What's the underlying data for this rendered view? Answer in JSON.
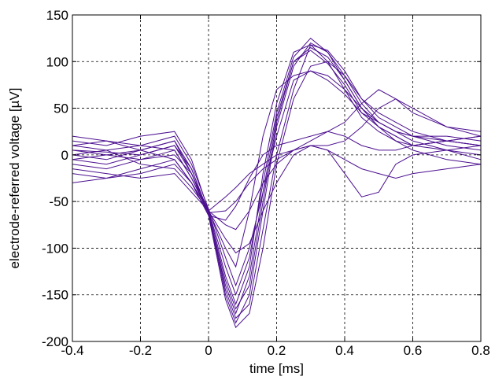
{
  "chart_data": {
    "type": "line",
    "title": "",
    "xlabel": "time [ms]",
    "ylabel": "electrode-referred voltage [µV]",
    "xlim": [
      -0.4,
      0.8
    ],
    "ylim": [
      -200,
      150
    ],
    "xticks": [
      -0.4,
      -0.2,
      0,
      0.2,
      0.4,
      0.6,
      0.8
    ],
    "xtick_labels": [
      "-0.4",
      "-0.2",
      "0",
      "0.2",
      "0.4",
      "0.6",
      "0.8"
    ],
    "yticks": [
      -200,
      -150,
      -100,
      -50,
      0,
      50,
      100,
      150
    ],
    "ytick_labels": [
      "-200",
      "-150",
      "-100",
      "-50",
      "0",
      "50",
      "100",
      "150"
    ],
    "grid": true,
    "line_color": "#4b0f8f",
    "x": [
      -0.4,
      -0.3,
      -0.2,
      -0.1,
      -0.05,
      0,
      0.05,
      0.08,
      0.12,
      0.16,
      0.2,
      0.25,
      0.3,
      0.35,
      0.4,
      0.45,
      0.5,
      0.55,
      0.6,
      0.7,
      0.8
    ],
    "series": [
      {
        "values": [
          5,
          3,
          0,
          10,
          -20,
          -65,
          -140,
          -170,
          -130,
          -40,
          40,
          100,
          115,
          105,
          80,
          50,
          35,
          25,
          20,
          10,
          5
        ]
      },
      {
        "values": [
          0,
          -5,
          5,
          15,
          -15,
          -62,
          -150,
          -180,
          -150,
          -60,
          30,
          95,
          120,
          110,
          85,
          55,
          35,
          25,
          15,
          5,
          0
        ]
      },
      {
        "values": [
          -10,
          -15,
          -5,
          5,
          -25,
          -60,
          -130,
          -160,
          -120,
          -20,
          55,
          110,
          118,
          100,
          70,
          40,
          25,
          15,
          10,
          15,
          10
        ]
      },
      {
        "values": [
          15,
          10,
          20,
          25,
          -5,
          -60,
          -145,
          -175,
          -160,
          -80,
          0,
          70,
          118,
          112,
          90,
          60,
          40,
          30,
          20,
          20,
          15
        ]
      },
      {
        "values": [
          -20,
          -25,
          -15,
          -5,
          -30,
          -65,
          -155,
          -185,
          -170,
          -100,
          -10,
          60,
          95,
          100,
          85,
          60,
          45,
          35,
          25,
          15,
          10
        ]
      },
      {
        "values": [
          5,
          0,
          -5,
          0,
          -20,
          -60,
          -120,
          -150,
          -110,
          -30,
          45,
          105,
          125,
          110,
          80,
          50,
          30,
          20,
          10,
          5,
          -5
        ]
      },
      {
        "values": [
          -5,
          -10,
          0,
          10,
          -15,
          -63,
          -135,
          -165,
          -140,
          -50,
          35,
          100,
          112,
          98,
          75,
          45,
          30,
          20,
          10,
          15,
          20
        ]
      },
      {
        "values": [
          10,
          5,
          10,
          20,
          -10,
          -58,
          -110,
          -140,
          -100,
          -40,
          20,
          80,
          90,
          80,
          65,
          45,
          35,
          25,
          20,
          15,
          10
        ]
      },
      {
        "values": [
          0,
          5,
          -10,
          -15,
          -35,
          -60,
          -90,
          -105,
          -95,
          -60,
          -30,
          0,
          10,
          5,
          -5,
          -15,
          -20,
          -25,
          -20,
          -15,
          -10
        ]
      },
      {
        "values": [
          -15,
          -20,
          -25,
          -20,
          -40,
          -60,
          -75,
          -80,
          -60,
          -30,
          -10,
          5,
          10,
          10,
          15,
          30,
          50,
          60,
          50,
          30,
          20
        ]
      },
      {
        "values": [
          20,
          15,
          10,
          5,
          -25,
          -62,
          -60,
          -50,
          -30,
          -15,
          -5,
          5,
          15,
          25,
          35,
          55,
          70,
          60,
          45,
          30,
          25
        ]
      },
      {
        "values": [
          -30,
          -25,
          -20,
          -10,
          -30,
          -60,
          -45,
          -35,
          -20,
          -10,
          0,
          5,
          10,
          5,
          -20,
          -45,
          -40,
          -10,
          0,
          5,
          10
        ]
      },
      {
        "values": [
          10,
          15,
          5,
          -5,
          -30,
          -65,
          -70,
          -55,
          -25,
          0,
          10,
          15,
          20,
          25,
          20,
          10,
          5,
          5,
          10,
          15,
          20
        ]
      },
      {
        "values": [
          -5,
          0,
          5,
          15,
          -20,
          -60,
          -100,
          -120,
          -60,
          20,
          70,
          85,
          90,
          85,
          70,
          50,
          30,
          15,
          5,
          -5,
          -10
        ]
      }
    ]
  }
}
